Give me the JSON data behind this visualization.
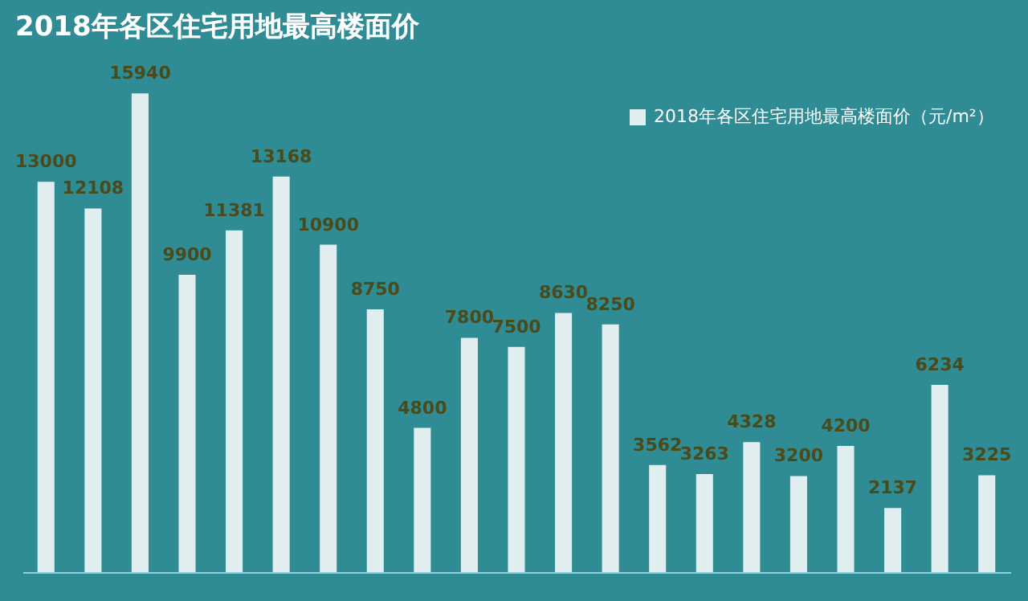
{
  "chart_data": {
    "type": "bar",
    "title": "2018年各区住宅用地最高楼面价",
    "categories": [
      null,
      null,
      null,
      null,
      null,
      null,
      null,
      null,
      null,
      null,
      null,
      null,
      null,
      null,
      null,
      null,
      null,
      null,
      null,
      null,
      null
    ],
    "series": [
      {
        "name": "2018年各区住宅用地最高楼面价（元/m²）",
        "color": "#ffffff",
        "values": [
          13000,
          12108,
          15940,
          9900,
          11381,
          13168,
          10900,
          8750,
          4800,
          7800,
          7500,
          8630,
          8250,
          3562,
          3263,
          4328,
          3200,
          4200,
          2137,
          6234,
          3225
        ]
      }
    ],
    "data_labels": true,
    "legend": "top right",
    "grid": false
  }
}
